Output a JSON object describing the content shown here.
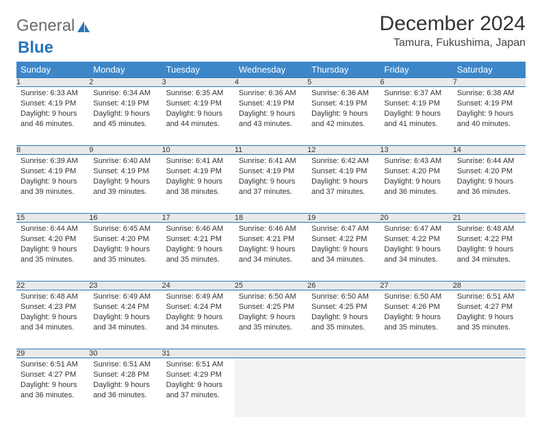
{
  "brand": {
    "general": "General",
    "blue": "Blue"
  },
  "title": "December 2024",
  "location": "Tamura, Fukushima, Japan",
  "colors": {
    "header_bg": "#3d87c9",
    "border": "#2a74b8",
    "daynum_bg": "#e9e9e9"
  },
  "weekdays": [
    "Sunday",
    "Monday",
    "Tuesday",
    "Wednesday",
    "Thursday",
    "Friday",
    "Saturday"
  ],
  "weeks": [
    [
      {
        "n": "1",
        "sr": "6:33 AM",
        "ss": "4:19 PM",
        "dl": "9 hours and 46 minutes."
      },
      {
        "n": "2",
        "sr": "6:34 AM",
        "ss": "4:19 PM",
        "dl": "9 hours and 45 minutes."
      },
      {
        "n": "3",
        "sr": "6:35 AM",
        "ss": "4:19 PM",
        "dl": "9 hours and 44 minutes."
      },
      {
        "n": "4",
        "sr": "6:36 AM",
        "ss": "4:19 PM",
        "dl": "9 hours and 43 minutes."
      },
      {
        "n": "5",
        "sr": "6:36 AM",
        "ss": "4:19 PM",
        "dl": "9 hours and 42 minutes."
      },
      {
        "n": "6",
        "sr": "6:37 AM",
        "ss": "4:19 PM",
        "dl": "9 hours and 41 minutes."
      },
      {
        "n": "7",
        "sr": "6:38 AM",
        "ss": "4:19 PM",
        "dl": "9 hours and 40 minutes."
      }
    ],
    [
      {
        "n": "8",
        "sr": "6:39 AM",
        "ss": "4:19 PM",
        "dl": "9 hours and 39 minutes."
      },
      {
        "n": "9",
        "sr": "6:40 AM",
        "ss": "4:19 PM",
        "dl": "9 hours and 39 minutes."
      },
      {
        "n": "10",
        "sr": "6:41 AM",
        "ss": "4:19 PM",
        "dl": "9 hours and 38 minutes."
      },
      {
        "n": "11",
        "sr": "6:41 AM",
        "ss": "4:19 PM",
        "dl": "9 hours and 37 minutes."
      },
      {
        "n": "12",
        "sr": "6:42 AM",
        "ss": "4:19 PM",
        "dl": "9 hours and 37 minutes."
      },
      {
        "n": "13",
        "sr": "6:43 AM",
        "ss": "4:20 PM",
        "dl": "9 hours and 36 minutes."
      },
      {
        "n": "14",
        "sr": "6:44 AM",
        "ss": "4:20 PM",
        "dl": "9 hours and 36 minutes."
      }
    ],
    [
      {
        "n": "15",
        "sr": "6:44 AM",
        "ss": "4:20 PM",
        "dl": "9 hours and 35 minutes."
      },
      {
        "n": "16",
        "sr": "6:45 AM",
        "ss": "4:20 PM",
        "dl": "9 hours and 35 minutes."
      },
      {
        "n": "17",
        "sr": "6:46 AM",
        "ss": "4:21 PM",
        "dl": "9 hours and 35 minutes."
      },
      {
        "n": "18",
        "sr": "6:46 AM",
        "ss": "4:21 PM",
        "dl": "9 hours and 34 minutes."
      },
      {
        "n": "19",
        "sr": "6:47 AM",
        "ss": "4:22 PM",
        "dl": "9 hours and 34 minutes."
      },
      {
        "n": "20",
        "sr": "6:47 AM",
        "ss": "4:22 PM",
        "dl": "9 hours and 34 minutes."
      },
      {
        "n": "21",
        "sr": "6:48 AM",
        "ss": "4:22 PM",
        "dl": "9 hours and 34 minutes."
      }
    ],
    [
      {
        "n": "22",
        "sr": "6:48 AM",
        "ss": "4:23 PM",
        "dl": "9 hours and 34 minutes."
      },
      {
        "n": "23",
        "sr": "6:49 AM",
        "ss": "4:24 PM",
        "dl": "9 hours and 34 minutes."
      },
      {
        "n": "24",
        "sr": "6:49 AM",
        "ss": "4:24 PM",
        "dl": "9 hours and 34 minutes."
      },
      {
        "n": "25",
        "sr": "6:50 AM",
        "ss": "4:25 PM",
        "dl": "9 hours and 35 minutes."
      },
      {
        "n": "26",
        "sr": "6:50 AM",
        "ss": "4:25 PM",
        "dl": "9 hours and 35 minutes."
      },
      {
        "n": "27",
        "sr": "6:50 AM",
        "ss": "4:26 PM",
        "dl": "9 hours and 35 minutes."
      },
      {
        "n": "28",
        "sr": "6:51 AM",
        "ss": "4:27 PM",
        "dl": "9 hours and 35 minutes."
      }
    ],
    [
      {
        "n": "29",
        "sr": "6:51 AM",
        "ss": "4:27 PM",
        "dl": "9 hours and 36 minutes."
      },
      {
        "n": "30",
        "sr": "6:51 AM",
        "ss": "4:28 PM",
        "dl": "9 hours and 36 minutes."
      },
      {
        "n": "31",
        "sr": "6:51 AM",
        "ss": "4:29 PM",
        "dl": "9 hours and 37 minutes."
      },
      null,
      null,
      null,
      null
    ]
  ],
  "labels": {
    "sunrise": "Sunrise:",
    "sunset": "Sunset:",
    "daylight": "Daylight:"
  }
}
